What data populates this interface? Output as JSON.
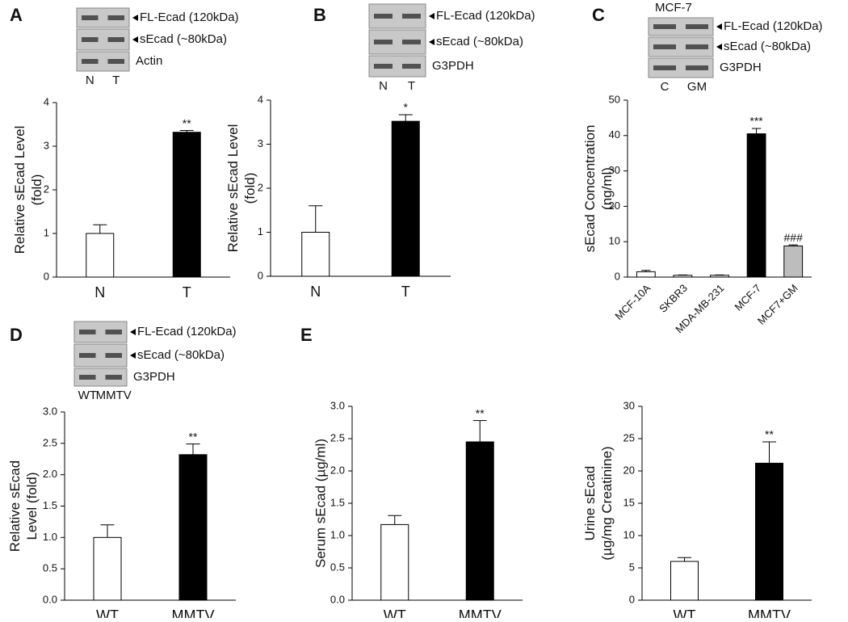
{
  "chart_data": [
    {
      "type": "bar",
      "panel": "A",
      "blot": {
        "bands": [
          "FL-Ecad (120kDa)",
          "sEcad (~80kDa)",
          "Actin"
        ],
        "lanes": [
          "N",
          "T"
        ]
      },
      "ylabel": [
        "Relative sEcad Level",
        "(fold)"
      ],
      "categories": [
        "N",
        "T"
      ],
      "values": [
        1,
        3.32
      ],
      "errors": [
        0.2,
        0.04
      ],
      "annotations": [
        null,
        "**"
      ],
      "colors": [
        "#ffffff",
        "#000000"
      ],
      "ylim": [
        0,
        4
      ],
      "yticks": [
        0,
        1,
        2,
        3,
        4
      ]
    },
    {
      "type": "bar",
      "panel": "B",
      "blot": {
        "bands": [
          "FL-Ecad (120kDa)",
          "sEcad (~80kDa)",
          "G3PDH"
        ],
        "lanes": [
          "N",
          "T"
        ]
      },
      "ylabel": [
        "Relative sEcad Level",
        "(fold)"
      ],
      "categories": [
        "N",
        "T"
      ],
      "values": [
        1,
        3.52
      ],
      "errors": [
        0.6,
        0.15
      ],
      "annotations": [
        null,
        "*"
      ],
      "colors": [
        "#ffffff",
        "#000000"
      ],
      "ylim": [
        0,
        4
      ],
      "yticks": [
        0,
        1,
        2,
        3,
        4
      ]
    },
    {
      "type": "bar",
      "panel": "C",
      "blot": {
        "title": "MCF-7",
        "bands": [
          "FL-Ecad (120kDa)",
          "sEcad (~80kDa)",
          "G3PDH"
        ],
        "lanes": [
          "C",
          "GM"
        ]
      },
      "ylabel": [
        "sEcad Concentration",
        "(ng/ml)"
      ],
      "categories": [
        "MCF-10A",
        "SKBR3",
        "MDA-MB-231",
        "MCF-7",
        "MCF7+GM"
      ],
      "values": [
        1.5,
        0.5,
        0.5,
        40.5,
        8.8
      ],
      "errors": [
        0.4,
        0.1,
        0.1,
        1.5,
        0.3
      ],
      "annotations": [
        null,
        null,
        null,
        "***",
        "###"
      ],
      "colors": [
        "#ffffff",
        "#ffffff",
        "#ffffff",
        "#000000",
        "#bdbdbd"
      ],
      "ylim": [
        0,
        50
      ],
      "yticks": [
        0,
        10,
        20,
        30,
        40,
        50
      ]
    },
    {
      "type": "bar",
      "panel": "D",
      "blot": {
        "bands": [
          "FL-Ecad (120kDa)",
          "sEcad (~80kDa)",
          "G3PDH"
        ],
        "lanes": [
          "WT",
          "MMTV"
        ]
      },
      "ylabel": [
        "Relative sEcad",
        "Level (fold)"
      ],
      "categories": [
        "WT",
        "MMTV"
      ],
      "values": [
        1.0,
        2.32
      ],
      "errors": [
        0.2,
        0.17
      ],
      "annotations": [
        null,
        "**"
      ],
      "colors": [
        "#ffffff",
        "#000000"
      ],
      "ylim": [
        0,
        3
      ],
      "yticks": [
        {
          "value": 0,
          "label": "0.0"
        },
        0.5,
        {
          "value": 1,
          "label": "1.0"
        },
        1.5,
        {
          "value": 2,
          "label": "2.0"
        },
        2.5,
        {
          "value": 3,
          "label": "3.0"
        }
      ]
    },
    {
      "type": "bar",
      "panel": "E",
      "ylabel": [
        "Serum sEcad (µg/ml)"
      ],
      "categories": [
        "WT",
        "MMTV"
      ],
      "values": [
        1.17,
        2.45
      ],
      "errors": [
        0.14,
        0.33
      ],
      "annotations": [
        null,
        "**"
      ],
      "colors": [
        "#ffffff",
        "#000000"
      ],
      "ylim": [
        0,
        3
      ],
      "yticks": [
        {
          "value": 0,
          "label": "0.0"
        },
        0.5,
        {
          "value": 1,
          "label": "1.0"
        },
        1.5,
        {
          "value": 2,
          "label": "2.0"
        },
        2.5,
        {
          "value": 3,
          "label": "3.0"
        }
      ]
    },
    {
      "type": "bar",
      "ylabel": [
        "Urine sEcad",
        "(µg/mg Creatinine)"
      ],
      "categories": [
        "WT",
        "MMTV"
      ],
      "values": [
        6,
        21.2
      ],
      "errors": [
        0.6,
        3.3
      ],
      "annotations": [
        null,
        "**"
      ],
      "colors": [
        "#ffffff",
        "#000000"
      ],
      "ylim": [
        0,
        30
      ],
      "yticks": [
        0,
        5,
        10,
        15,
        20,
        25,
        30
      ]
    }
  ]
}
